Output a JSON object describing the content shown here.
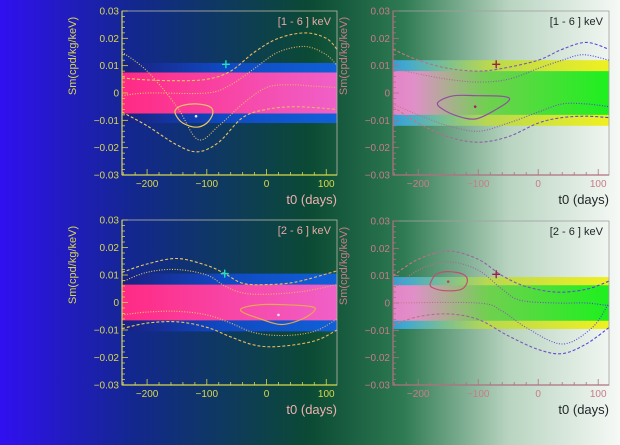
{
  "colors": {
    "background_left": "#3010f0",
    "background_mid": "#0b4a34",
    "background_right": "#f6f9f6",
    "inner_band_left": "#ff2a84",
    "inner_band_right": "#1ef01e",
    "outer_band_left": "#1050d0",
    "outer_band_right": "#f0f020",
    "curve_left": "#e8d060",
    "curve_right": "#4a40e8"
  },
  "chart_data": [
    {
      "type": "line",
      "label": "[1 - 6 ] keV",
      "xlabel": "t0 (days)",
      "ylabel": "Sm(cpd/kg/keV)",
      "xlim": [
        -242,
        118
      ],
      "ylim": [
        -0.03,
        0.03
      ],
      "xticks": [
        {
          "v": -200,
          "label": "−200"
        },
        {
          "v": -100,
          "label": "−100"
        },
        {
          "v": 0,
          "label": "0"
        },
        {
          "v": 100,
          "label": "100"
        }
      ],
      "yticks": [
        {
          "v": 0.03,
          "label": "0.03"
        },
        {
          "v": 0.02,
          "label": "0.02"
        },
        {
          "v": 0.01,
          "label": "0.01"
        },
        {
          "v": 0,
          "label": "0"
        },
        {
          "v": -0.01,
          "label": "−0.01"
        },
        {
          "v": -0.02,
          "label": "−0.02"
        },
        {
          "v": -0.03,
          "label": "−0.03"
        }
      ],
      "bands": {
        "inner": [
          -0.0075,
          0.0075
        ],
        "outer": [
          -0.011,
          0.011
        ]
      },
      "curves": [
        {
          "style": "dashed",
          "points": [
            [
              -242,
              0.0055
            ],
            [
              -200,
              0.0048
            ],
            [
              -150,
              0.0045
            ],
            [
              -100,
              0.005
            ],
            [
              -60,
              0.008
            ],
            [
              -20,
              0.015
            ],
            [
              20,
              0.02
            ],
            [
              65,
              0.022
            ],
            [
              100,
              0.02
            ],
            [
              118,
              0.016
            ]
          ]
        },
        {
          "style": "dotted",
          "points": [
            [
              -242,
              0.015
            ],
            [
              -200,
              0.008
            ],
            [
              -150,
              -0.005
            ],
            [
              -115,
              -0.017
            ],
            [
              -80,
              -0.012
            ],
            [
              -40,
              -0.004
            ],
            [
              0,
              0.002
            ],
            [
              40,
              0.003
            ],
            [
              80,
              0.0025
            ],
            [
              118,
              0.002
            ]
          ]
        },
        {
          "style": "dotted",
          "points": [
            [
              -242,
              -0.001
            ],
            [
              -200,
              0.0
            ],
            [
              -100,
              0.0
            ],
            [
              -60,
              0.003
            ],
            [
              -20,
              0.009
            ],
            [
              20,
              0.015
            ],
            [
              65,
              0.017
            ],
            [
              100,
              0.014
            ],
            [
              118,
              0.01
            ]
          ]
        },
        {
          "style": "dashed",
          "points": [
            [
              -242,
              -0.007
            ],
            [
              -200,
              -0.012
            ],
            [
              -150,
              -0.019
            ],
            [
              -115,
              -0.0215
            ],
            [
              -80,
              -0.018
            ],
            [
              -40,
              -0.009
            ],
            [
              0,
              -0.006
            ],
            [
              50,
              -0.005
            ],
            [
              118,
              -0.006
            ]
          ]
        }
      ],
      "contour": [
        [
          -152,
          -0.006
        ],
        [
          -140,
          -0.0045
        ],
        [
          -118,
          -0.004
        ],
        [
          -95,
          -0.005
        ],
        [
          -90,
          -0.0075
        ],
        [
          -100,
          -0.011
        ],
        [
          -118,
          -0.0125
        ],
        [
          -140,
          -0.011
        ],
        [
          -152,
          -0.008
        ]
      ],
      "best_fit": [
        -118,
        -0.0085
      ],
      "reference_point": [
        -68,
        0.0105
      ]
    },
    {
      "type": "line",
      "label": "[1 - 6 ] keV",
      "xlabel": "t0 (days)",
      "ylabel": "Sm(cpd/kg/keV)",
      "xlim": [
        -242,
        118
      ],
      "ylim": [
        -0.03,
        0.03
      ],
      "xticks": [
        {
          "v": -200,
          "label": "−200"
        },
        {
          "v": -100,
          "label": "−100"
        },
        {
          "v": 0,
          "label": "0"
        },
        {
          "v": 100,
          "label": "100"
        }
      ],
      "yticks": [
        {
          "v": 0.03,
          "label": "0.03"
        },
        {
          "v": 0.02,
          "label": "0.02"
        },
        {
          "v": 0.01,
          "label": "0.01"
        },
        {
          "v": 0,
          "label": "0"
        },
        {
          "v": -0.01,
          "label": "−0.01"
        },
        {
          "v": -0.02,
          "label": "−0.02"
        },
        {
          "v": -0.03,
          "label": "−0.03"
        }
      ],
      "bands": {
        "inner": [
          -0.008,
          0.008
        ],
        "outer": [
          -0.012,
          0.012
        ]
      },
      "curves": [
        {
          "style": "dashed",
          "points": [
            [
              -242,
              0.016
            ],
            [
              -200,
              0.012
            ],
            [
              -150,
              0.009
            ],
            [
              -100,
              0.008
            ],
            [
              -60,
              0.009
            ],
            [
              0,
              0.012
            ],
            [
              40,
              0.016
            ],
            [
              80,
              0.0185
            ],
            [
              118,
              0.016
            ]
          ]
        },
        {
          "style": "dotted",
          "points": [
            [
              -242,
              0.009
            ],
            [
              -200,
              0.007
            ],
            [
              -150,
              0.005
            ],
            [
              -100,
              0.004
            ],
            [
              -50,
              0.005
            ],
            [
              0,
              0.009
            ],
            [
              40,
              0.012
            ],
            [
              75,
              0.014
            ],
            [
              118,
              0.012
            ]
          ]
        },
        {
          "style": "dotted",
          "points": [
            [
              -242,
              -0.004
            ],
            [
              -200,
              -0.008
            ],
            [
              -150,
              -0.012
            ],
            [
              -100,
              -0.014
            ],
            [
              -50,
              -0.011
            ],
            [
              0,
              -0.007
            ],
            [
              40,
              -0.004
            ],
            [
              80,
              -0.004
            ],
            [
              118,
              -0.005
            ]
          ]
        },
        {
          "style": "dashed",
          "points": [
            [
              -242,
              -0.005
            ],
            [
              -200,
              -0.011
            ],
            [
              -150,
              -0.016
            ],
            [
              -100,
              -0.018
            ],
            [
              -50,
              -0.016
            ],
            [
              0,
              -0.011
            ],
            [
              40,
              -0.009
            ],
            [
              80,
              -0.0085
            ],
            [
              118,
              -0.009
            ]
          ]
        }
      ],
      "contour": [
        [
          -165,
          -0.003
        ],
        [
          -140,
          -0.001
        ],
        [
          -100,
          -0.001
        ],
        [
          -60,
          -0.0012
        ],
        [
          -48,
          -0.0025
        ],
        [
          -70,
          -0.006
        ],
        [
          -105,
          -0.0095
        ],
        [
          -140,
          -0.008
        ],
        [
          -165,
          -0.005
        ]
      ],
      "best_fit": [
        -105,
        -0.005
      ],
      "reference_point": [
        -70,
        0.0105
      ]
    },
    {
      "type": "line",
      "label": "[2 - 6 ] keV",
      "xlabel": "t0 (days)",
      "ylabel": "Sm(cpd/kg/keV)",
      "xlim": [
        -242,
        118
      ],
      "ylim": [
        -0.03,
        0.03
      ],
      "xticks": [
        {
          "v": -200,
          "label": "−200"
        },
        {
          "v": -100,
          "label": "−100"
        },
        {
          "v": 0,
          "label": "0"
        },
        {
          "v": 100,
          "label": "100"
        }
      ],
      "yticks": [
        {
          "v": 0.03,
          "label": "0.03"
        },
        {
          "v": 0.02,
          "label": "0.02"
        },
        {
          "v": 0.01,
          "label": "0.01"
        },
        {
          "v": 0,
          "label": "0"
        },
        {
          "v": -0.01,
          "label": "−0.01"
        },
        {
          "v": -0.02,
          "label": "−0.02"
        },
        {
          "v": -0.03,
          "label": "−0.03"
        }
      ],
      "bands": {
        "inner": [
          -0.0065,
          0.0065
        ],
        "outer": [
          -0.0105,
          0.0105
        ]
      },
      "curves": [
        {
          "style": "dashed",
          "points": [
            [
              -242,
              0.011
            ],
            [
              -200,
              0.014
            ],
            [
              -150,
              0.016
            ],
            [
              -100,
              0.0135
            ],
            [
              -70,
              0.0105
            ],
            [
              -40,
              0.007
            ],
            [
              0,
              0.0065
            ],
            [
              50,
              0.0075
            ],
            [
              118,
              0.0115
            ]
          ]
        },
        {
          "style": "dotted",
          "points": [
            [
              -242,
              0.0075
            ],
            [
              -200,
              0.011
            ],
            [
              -150,
              0.012
            ],
            [
              -100,
              0.01
            ],
            [
              -70,
              0.006
            ],
            [
              -40,
              0.0035
            ],
            [
              0,
              0.003
            ],
            [
              60,
              0.004
            ],
            [
              118,
              0.0065
            ]
          ]
        },
        {
          "style": "dotted",
          "points": [
            [
              -242,
              -0.0045
            ],
            [
              -200,
              -0.0035
            ],
            [
              -150,
              -0.0032
            ],
            [
              -100,
              -0.0045
            ],
            [
              -60,
              -0.0075
            ],
            [
              -20,
              -0.011
            ],
            [
              30,
              -0.012
            ],
            [
              80,
              -0.0105
            ],
            [
              118,
              -0.006
            ]
          ]
        },
        {
          "style": "dashed",
          "points": [
            [
              -242,
              -0.0095
            ],
            [
              -200,
              -0.0075
            ],
            [
              -150,
              -0.007
            ],
            [
              -100,
              -0.009
            ],
            [
              -60,
              -0.0125
            ],
            [
              -20,
              -0.0155
            ],
            [
              20,
              -0.016
            ],
            [
              80,
              -0.014
            ],
            [
              118,
              -0.01
            ]
          ]
        }
      ],
      "contour": [
        [
          -40,
          -0.002
        ],
        [
          -10,
          -0.0008
        ],
        [
          30,
          -0.0008
        ],
        [
          75,
          -0.0015
        ],
        [
          80,
          -0.003
        ],
        [
          60,
          -0.006
        ],
        [
          25,
          -0.008
        ],
        [
          -10,
          -0.006
        ],
        [
          -40,
          -0.0035
        ]
      ],
      "best_fit": [
        20,
        -0.0045
      ],
      "reference_point": [
        -70,
        0.0105
      ]
    },
    {
      "type": "line",
      "label": "[2 - 6 ] keV",
      "xlabel": "t0 (days)",
      "ylabel": "Sm(cpd/kg/keV)",
      "xlim": [
        -242,
        118
      ],
      "ylim": [
        -0.03,
        0.03
      ],
      "xticks": [
        {
          "v": -200,
          "label": "−200"
        },
        {
          "v": -100,
          "label": "−100"
        },
        {
          "v": 0,
          "label": "0"
        },
        {
          "v": 100,
          "label": "100"
        }
      ],
      "yticks": [
        {
          "v": 0.03,
          "label": "0.03"
        },
        {
          "v": 0.02,
          "label": "0.02"
        },
        {
          "v": 0.01,
          "label": "0.01"
        },
        {
          "v": 0,
          "label": "0"
        },
        {
          "v": -0.01,
          "label": "−0.01"
        },
        {
          "v": -0.02,
          "label": "−0.02"
        },
        {
          "v": -0.03,
          "label": "−0.03"
        }
      ],
      "bands": {
        "inner": [
          -0.0065,
          0.0065
        ],
        "outer": [
          -0.0095,
          0.0095
        ]
      },
      "curves": [
        {
          "style": "dashed",
          "points": [
            [
              -242,
              0.01
            ],
            [
              -200,
              0.016
            ],
            [
              -150,
              0.019
            ],
            [
              -100,
              0.016
            ],
            [
              -60,
              0.01
            ],
            [
              -20,
              0.006
            ],
            [
              30,
              0.004
            ],
            [
              80,
              0.005
            ],
            [
              118,
              0.008
            ]
          ]
        },
        {
          "style": "dotted",
          "points": [
            [
              -242,
              0.005
            ],
            [
              -200,
              0.012
            ],
            [
              -150,
              0.015
            ],
            [
              -100,
              0.012
            ],
            [
              -60,
              0.005
            ],
            [
              -30,
              0.001
            ],
            [
              30,
              0.0
            ],
            [
              80,
              0.0
            ],
            [
              118,
              -0.001
            ]
          ]
        },
        {
          "style": "dotted",
          "points": [
            [
              -242,
              0.0
            ],
            [
              -100,
              0.0
            ],
            [
              -60,
              -0.003
            ],
            [
              -20,
              -0.009
            ],
            [
              40,
              -0.015
            ],
            [
              90,
              -0.009
            ],
            [
              118,
              0.0
            ]
          ]
        },
        {
          "style": "dashed",
          "points": [
            [
              -242,
              -0.008
            ],
            [
              -200,
              -0.005
            ],
            [
              -150,
              -0.004
            ],
            [
              -100,
              -0.006
            ],
            [
              -50,
              -0.012
            ],
            [
              0,
              -0.017
            ],
            [
              40,
              -0.0185
            ],
            [
              80,
              -0.015
            ],
            [
              118,
              -0.009
            ]
          ]
        }
      ],
      "contour": [
        [
          -180,
          0.007
        ],
        [
          -170,
          0.0105
        ],
        [
          -150,
          0.0115
        ],
        [
          -125,
          0.0105
        ],
        [
          -118,
          0.008
        ],
        [
          -128,
          0.005
        ],
        [
          -155,
          0.0045
        ],
        [
          -175,
          0.0055
        ]
      ],
      "best_fit": [
        -150,
        0.0078
      ],
      "reference_point": [
        -70,
        0.0105
      ]
    }
  ]
}
